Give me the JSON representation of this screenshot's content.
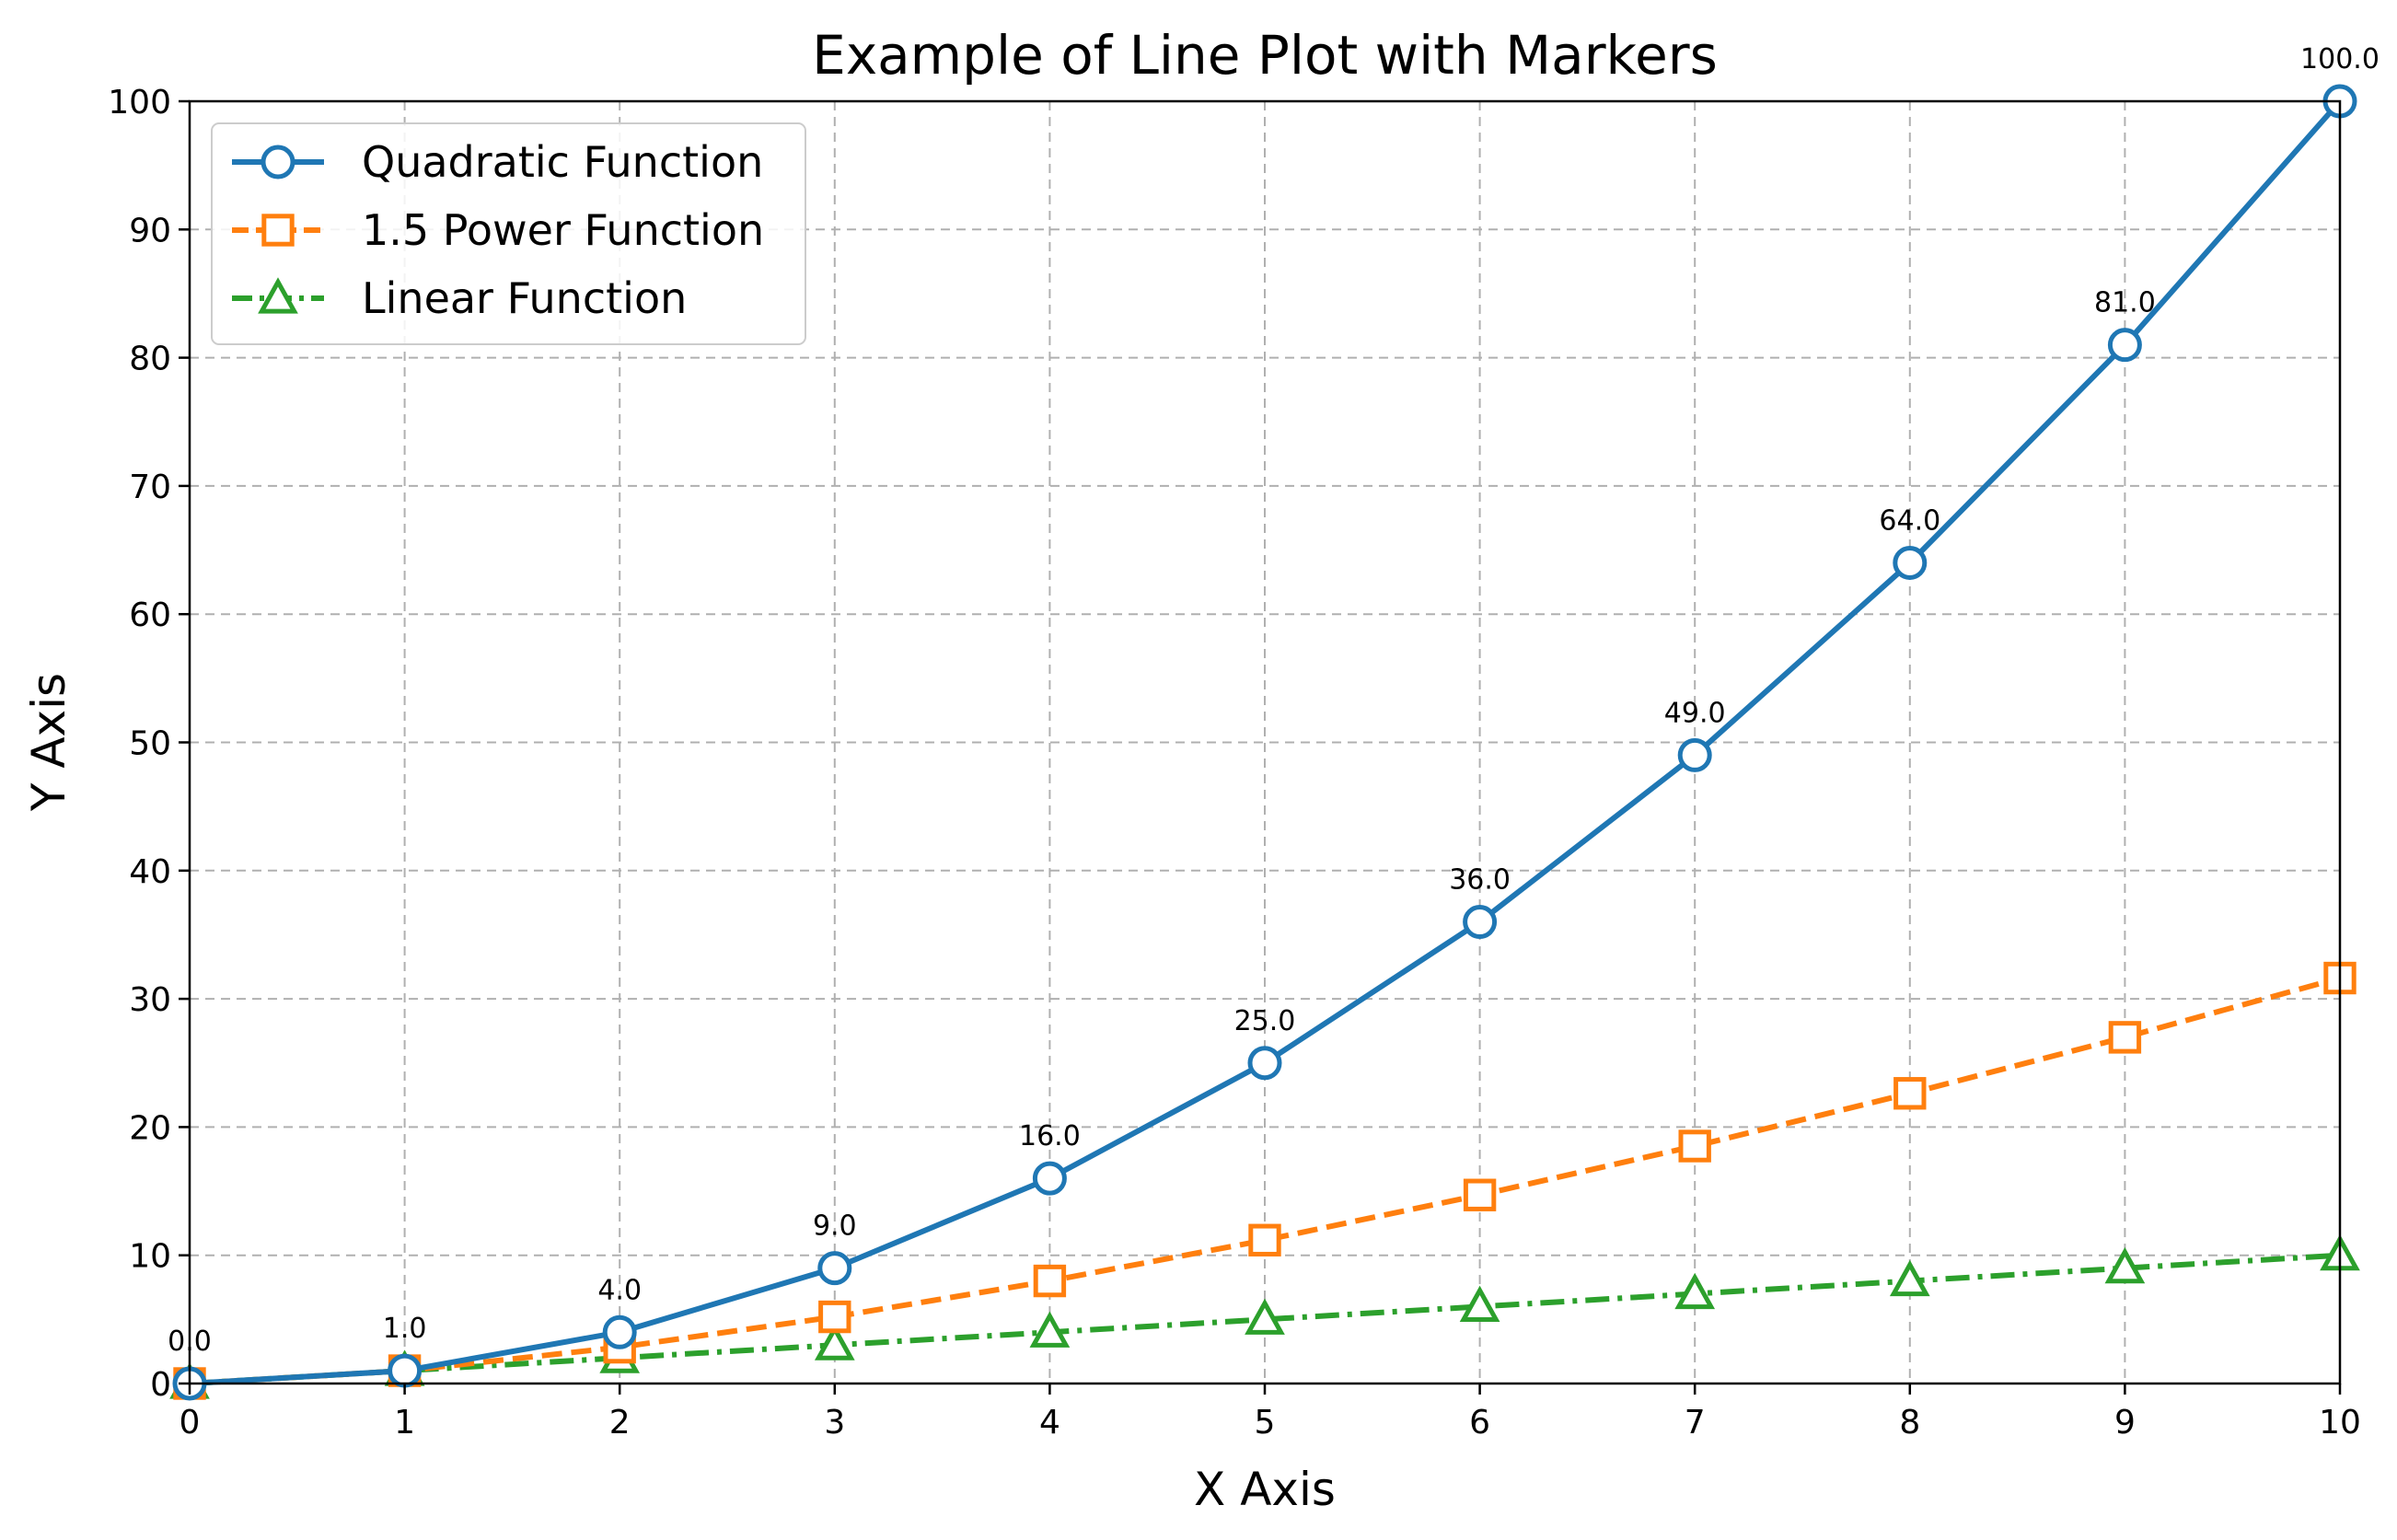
{
  "chart_data": {
    "type": "line",
    "title": "Example of Line Plot with Markers",
    "xlabel": "X Axis",
    "ylabel": "Y Axis",
    "xlim": [
      0,
      10
    ],
    "ylim": [
      0,
      100
    ],
    "x_ticks": [
      0,
      1,
      2,
      3,
      4,
      5,
      6,
      7,
      8,
      9,
      10
    ],
    "y_ticks": [
      0,
      10,
      20,
      30,
      40,
      50,
      60,
      70,
      80,
      90,
      100
    ],
    "grid": true,
    "grid_style": "dashed",
    "legend_position": "top-left",
    "x": [
      0,
      1,
      2,
      3,
      4,
      5,
      6,
      7,
      8,
      9,
      10
    ],
    "series": [
      {
        "name": "Quadratic Function",
        "values": [
          0,
          1,
          4,
          9,
          16,
          25,
          36,
          49,
          64,
          81,
          100
        ],
        "color": "#1f77b4",
        "marker": "circle",
        "line_style": "solid",
        "data_labels": [
          "0.0",
          "1.0",
          "4.0",
          "9.0",
          "16.0",
          "25.0",
          "36.0",
          "49.0",
          "64.0",
          "81.0",
          "100.0"
        ]
      },
      {
        "name": "1.5 Power Function",
        "values": [
          0,
          1,
          2.83,
          5.2,
          8,
          11.18,
          14.7,
          18.52,
          22.63,
          27,
          31.62
        ],
        "color": "#ff7f0e",
        "marker": "square",
        "line_style": "dashed"
      },
      {
        "name": "Linear Function",
        "values": [
          0,
          1,
          2,
          3,
          4,
          5,
          6,
          7,
          8,
          9,
          10
        ],
        "color": "#2ca02c",
        "marker": "triangle",
        "line_style": "dashdot"
      }
    ]
  }
}
